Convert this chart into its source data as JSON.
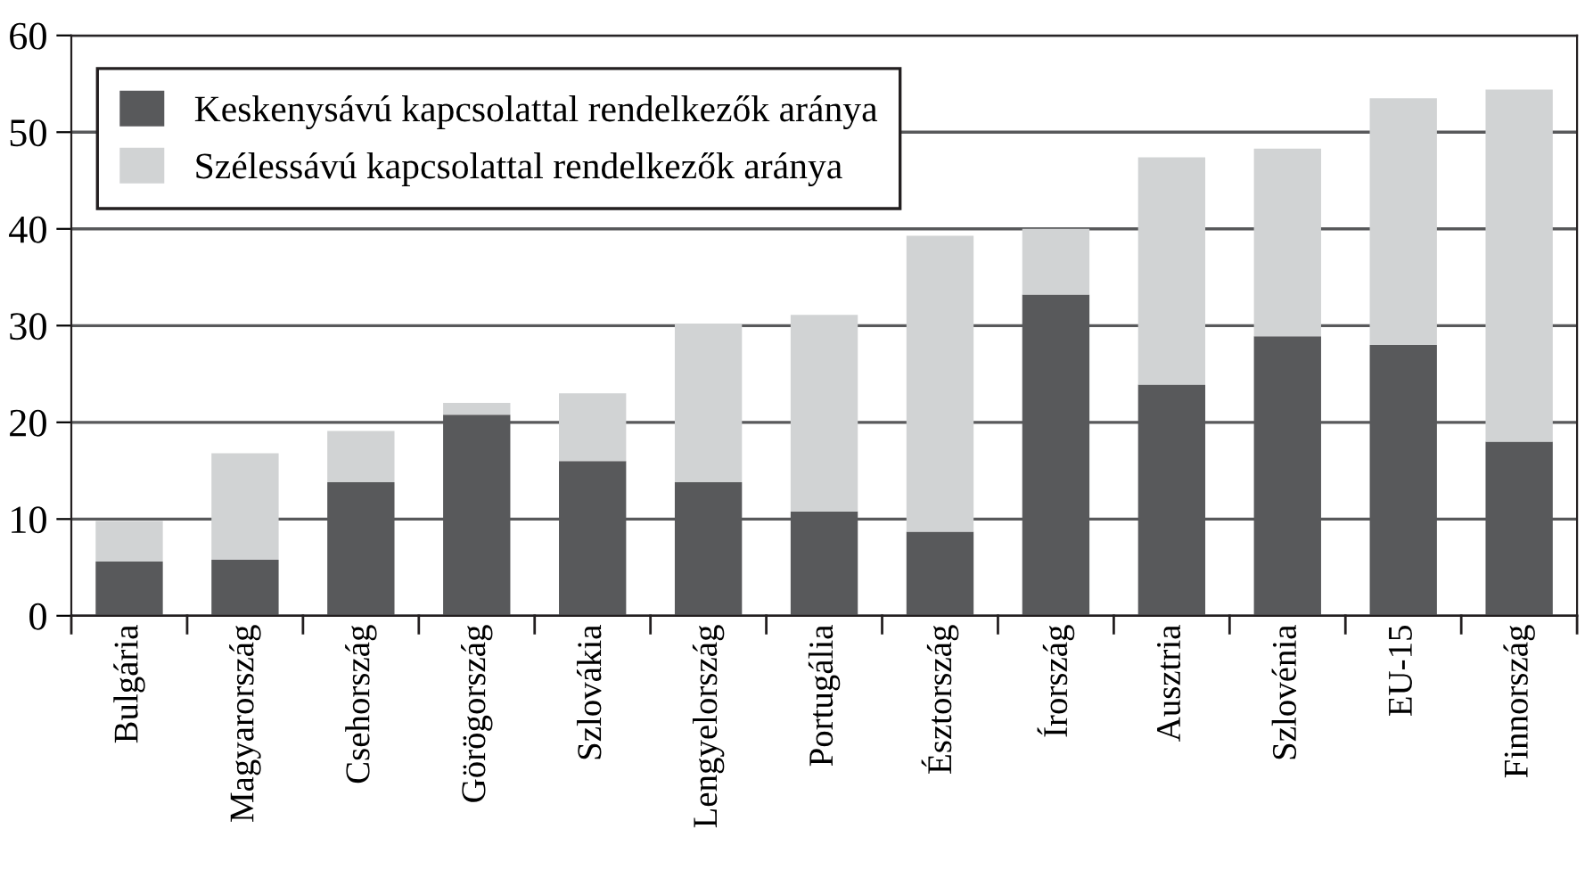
{
  "chart_data": {
    "type": "bar",
    "stacked": true,
    "categories": [
      "Bulgária",
      "Magyarország",
      "Csehország",
      "Görögország",
      "Szlovákia",
      "Lengyelország",
      "Portugália",
      "Észtország",
      "Írország",
      "Ausztria",
      "Szlovénia",
      "EU-15",
      "Finnország"
    ],
    "series": [
      {
        "name": "Keskenysávú kapcsolattal rendelkezők aránya",
        "color": "#58595b",
        "values": [
          5.6,
          5.8,
          13.8,
          20.8,
          16.0,
          13.8,
          10.8,
          8.7,
          33.2,
          23.9,
          28.9,
          28.0,
          18.0
        ]
      },
      {
        "name": "Szélessávú kapcsolattal rendelkezők aránya",
        "color": "#d1d3d4",
        "values": [
          4.2,
          11.0,
          5.3,
          1.2,
          7.0,
          16.4,
          20.3,
          30.6,
          6.8,
          23.5,
          19.4,
          25.5,
          36.4
        ]
      }
    ],
    "ylim": [
      0,
      60
    ],
    "yticks": [
      0,
      10,
      20,
      30,
      40,
      50,
      60
    ],
    "grid": "y",
    "legend": "top left"
  }
}
